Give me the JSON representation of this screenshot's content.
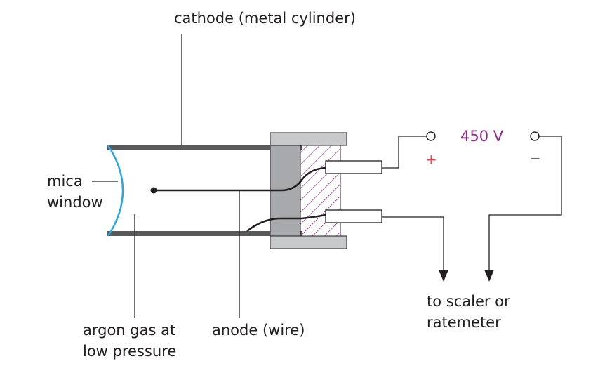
{
  "labels": {
    "cathode": "cathode (metal cylinder)",
    "mica_line1": "mica",
    "mica_line2": "window",
    "argon_line1": "argon gas at",
    "argon_line2": "low pressure",
    "anode": "anode (wire)",
    "scaler_line1": "to scaler or",
    "scaler_line2": "ratemeter",
    "voltage": "450 V",
    "plus": "+",
    "minus": "−"
  },
  "colors": {
    "line": "#231f20",
    "tube_wall": "#58595b",
    "end_cap": "#c8c9ca",
    "seal": "#a7a9ac",
    "hatch": "#8e2a8a",
    "mica": "#29a8e0",
    "voltage_text": "#8e2a8a",
    "plus_sign": "#e8434a",
    "minus_sign": "#6d6e71"
  }
}
